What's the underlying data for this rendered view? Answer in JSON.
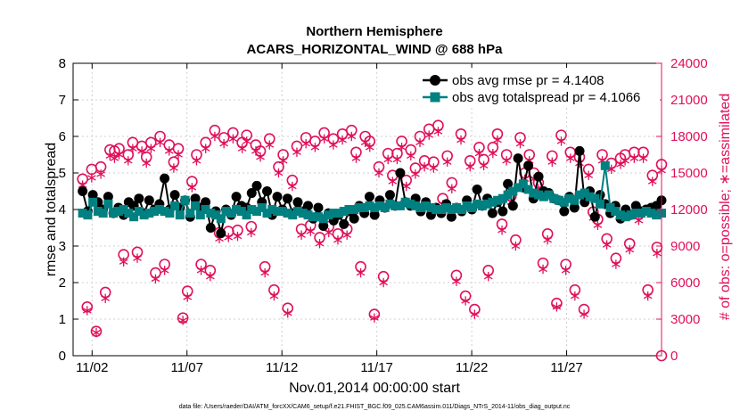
{
  "chart_data": {
    "type": "line",
    "title": "Northern Hemisphere",
    "subtitle": "ACARS_HORIZONTAL_WIND @ 688 hPa",
    "xlabel": "Nov.01,2014 00:00:00 start",
    "ylabel": "rmse and totalspread",
    "y2label": "# of obs: o=possible; ∗=assimilated",
    "xlim": [
      0.5,
      31.5
    ],
    "ylim": [
      0,
      8
    ],
    "y2lim": [
      0,
      24000
    ],
    "x_ticks": [
      1.5,
      6.5,
      11.5,
      16.5,
      21.5,
      26.5
    ],
    "x_tick_labels": [
      "11/02",
      "11/07",
      "11/12",
      "11/17",
      "11/22",
      "11/27"
    ],
    "y_ticks": [
      "0",
      "1",
      "2",
      "3",
      "4",
      "5",
      "6",
      "7",
      "8"
    ],
    "y2_ticks": [
      "0",
      "3000",
      "6000",
      "9000",
      "12000",
      "15000",
      "18000",
      "21000",
      "24000"
    ],
    "grid": true,
    "legend_position": "top-right",
    "footnote": "data file: /Users/raeder/DAI/ATM_forcXX/CAM6_setup/f.e21.FHIST_BGC.f09_025.CAM6assim.011/Diags_NTrS_2014-11/obs_diag_output.nc",
    "colors": {
      "rmse": "#000000",
      "spread": "#008080",
      "obs": "#e0105a"
    },
    "series": [
      {
        "name": "obs avg rmse pr = 4.1408",
        "style": "line-circle",
        "values": [
          4.5,
          3.95,
          4.4,
          4.2,
          4.0,
          4.35,
          3.9,
          4.05,
          3.85,
          4.2,
          4.1,
          4.3,
          3.9,
          4.25,
          4.0,
          4.15,
          4.85,
          4.0,
          4.4,
          4.05,
          4.25,
          3.8,
          4.3,
          4.05,
          4.2,
          3.5,
          3.95,
          3.35,
          4.0,
          3.85,
          4.35,
          4.1,
          4.05,
          4.45,
          4.65,
          4.2,
          4.5,
          3.85,
          4.35,
          4.0,
          4.3,
          3.9,
          4.2,
          3.95,
          4.1,
          3.75,
          4.05,
          3.55,
          3.9,
          3.7,
          3.85,
          3.6,
          3.95,
          3.75,
          4.1,
          3.9,
          4.35,
          3.85,
          4.25,
          4.05,
          4.4,
          4.1,
          5.0,
          4.2,
          4.1,
          4.3,
          3.95,
          4.2,
          3.85,
          4.05,
          3.9,
          4.15,
          3.8,
          4.05,
          3.95,
          4.25,
          4.0,
          4.55,
          4.1,
          4.3,
          3.9,
          4.2,
          3.95,
          4.7,
          4.1,
          5.4,
          4.6,
          5.2,
          4.3,
          4.9,
          4.5,
          4.45,
          4.3,
          4.25,
          3.95,
          4.35,
          4.05,
          5.6,
          4.2,
          4.5,
          3.8,
          4.4,
          4.15,
          3.9,
          4.1,
          3.75,
          4.0,
          3.85,
          4.1,
          3.95,
          4.0,
          4.05,
          4.1,
          4.25
        ]
      },
      {
        "name": "obs avg totalspread pr = 4.1066",
        "style": "line-square",
        "values": [
          3.9,
          3.85,
          4.2,
          3.95,
          3.9,
          4.15,
          3.9,
          3.95,
          4.0,
          3.9,
          3.8,
          3.95,
          3.85,
          3.9,
          3.95,
          4.0,
          3.95,
          3.9,
          4.1,
          3.85,
          4.25,
          3.9,
          4.1,
          3.85,
          4.0,
          3.9,
          3.85,
          3.75,
          3.95,
          3.9,
          4.0,
          3.95,
          3.85,
          4.0,
          3.95,
          4.05,
          3.9,
          4.0,
          3.95,
          3.95,
          3.9,
          3.85,
          3.95,
          3.9,
          3.85,
          3.8,
          3.8,
          3.75,
          3.85,
          3.9,
          3.9,
          3.95,
          4.0,
          4.0,
          4.05,
          4.05,
          4.1,
          4.05,
          4.1,
          4.05,
          4.15,
          4.1,
          4.1,
          4.2,
          4.15,
          4.1,
          4.05,
          4.1,
          4.05,
          4.0,
          4.0,
          4.05,
          4.0,
          4.05,
          4.0,
          4.1,
          4.05,
          4.15,
          4.1,
          4.15,
          4.2,
          4.25,
          4.3,
          4.4,
          4.5,
          4.6,
          4.7,
          4.55,
          4.45,
          4.4,
          4.35,
          4.4,
          4.3,
          4.25,
          4.2,
          4.3,
          4.25,
          4.4,
          4.45,
          4.35,
          4.3,
          4.15,
          5.2,
          4.05,
          3.95,
          3.85,
          3.8,
          3.85,
          3.9,
          3.9,
          3.95,
          3.9,
          3.85,
          3.9
        ]
      },
      {
        "name": "possible obs count",
        "axis": "right",
        "marker": "o",
        "values": [
          14500,
          4000,
          15300,
          2000,
          15500,
          5200,
          16900,
          16800,
          17000,
          8300,
          16500,
          17500,
          8500,
          17200,
          16300,
          17500,
          6800,
          18000,
          7500,
          17300,
          15900,
          17000,
          3100,
          5300,
          14300,
          16500,
          7500,
          17500,
          7000,
          18500,
          10100,
          17900,
          10200,
          18300,
          10300,
          17500,
          18100,
          10600,
          17300,
          16800,
          7300,
          17800,
          5400,
          15500,
          16500,
          3900,
          14400,
          17200,
          10400,
          17900,
          10700,
          17600,
          9700,
          18300,
          10600,
          17800,
          10000,
          18200,
          10400,
          18500,
          16700,
          7300,
          18000,
          17600,
          3400,
          15500,
          6500,
          16600,
          14800,
          16600,
          17600,
          14400,
          16900,
          15400,
          18000,
          16000,
          18600,
          15900,
          18900,
          12900,
          16400,
          14200,
          6600,
          18200,
          4900,
          16000,
          3800,
          17100,
          16100,
          7000,
          17100,
          18200,
          10800,
          16500,
          13100,
          9500,
          17900,
          15000,
          16500,
          15000,
          14200,
          7600,
          10000,
          16400,
          4300,
          18100,
          7500,
          16700,
          5400,
          16300,
          3800,
          15300,
          11800,
          11200,
          16500,
          9600,
          15800,
          8000,
          16200,
          16500,
          9200,
          16700,
          11600,
          16700,
          5400,
          14800,
          8900,
          15700
        ]
      },
      {
        "name": "assimilated obs count",
        "axis": "right",
        "marker": "*",
        "values": [
          14000,
          3700,
          14600,
          1900,
          14900,
          4700,
          16400,
          16200,
          16500,
          7700,
          16000,
          17000,
          8000,
          16800,
          15800,
          17000,
          6300,
          17500,
          7000,
          16800,
          15400,
          16500,
          2900,
          4800,
          13800,
          16000,
          7000,
          17000,
          6500,
          18000,
          9600,
          17400,
          9700,
          17800,
          9800,
          17000,
          17600,
          10100,
          16800,
          16300,
          6800,
          17300,
          4900,
          15000,
          16000,
          3500,
          13900,
          16700,
          9900,
          17400,
          10200,
          17100,
          9200,
          17800,
          10100,
          17300,
          9500,
          17700,
          9900,
          18000,
          16200,
          6800,
          17500,
          17100,
          3100,
          15000,
          6000,
          16100,
          14300,
          16100,
          17100,
          13900,
          16400,
          14900,
          17500,
          15500,
          18100,
          15400,
          18400,
          12400,
          15900,
          13700,
          6100,
          17700,
          4500,
          15500,
          3400,
          16600,
          15600,
          6500,
          16600,
          17700,
          10300,
          16000,
          12600,
          9000,
          17400,
          14500,
          16000,
          14500,
          13700,
          7100,
          9500,
          15900,
          4000,
          17600,
          7000,
          16200,
          4900,
          15800,
          3400,
          14800,
          11300,
          10700,
          16000,
          9100,
          15300,
          7500,
          15700,
          16000,
          8700,
          16200,
          11100,
          16200,
          4900,
          14300,
          8400,
          15200
        ]
      }
    ]
  }
}
